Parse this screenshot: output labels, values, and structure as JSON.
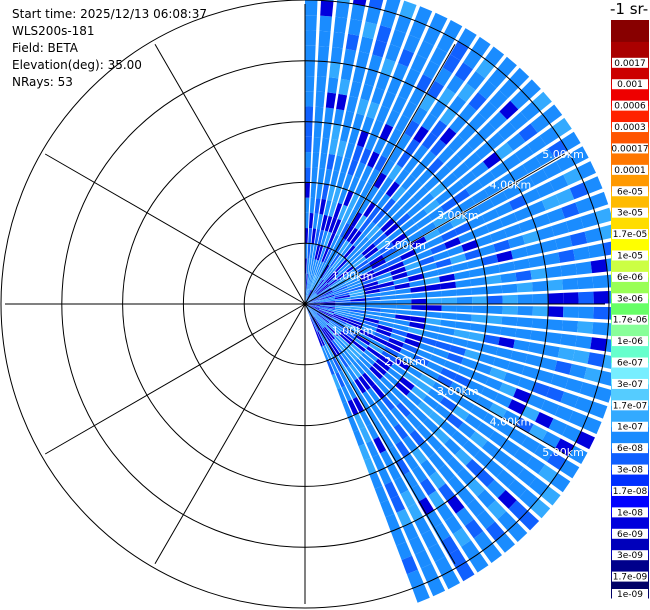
{
  "info": {
    "start_time": "Start time: 2025/12/13 06:08:37",
    "instrument": "WLS200s-181",
    "field": "Field: BETA",
    "elevation": "Elevation(deg): 35.00",
    "nrays": "NRays: 53"
  },
  "colorbar": {
    "title": "-1 sr-",
    "colors": [
      "#000066",
      "#00008b",
      "#0000bb",
      "#0000dd",
      "#0000ff",
      "#0030ff",
      "#1060ff",
      "#1a8cff",
      "#33aaff",
      "#55ccff",
      "#77eeff",
      "#66ffcc",
      "#88ff99",
      "#66ff66",
      "#99ff55",
      "#ccff44",
      "#ffff00",
      "#ffdd00",
      "#ffbb00",
      "#ff9900",
      "#ff7700",
      "#ff5500",
      "#ff2200",
      "#ee0000",
      "#cc0000",
      "#aa0000",
      "#880000"
    ],
    "labels": [
      "1e-09",
      "1.7e-09",
      "3e-09",
      "6e-09",
      "1e-08",
      "1.7e-08",
      "3e-08",
      "6e-08",
      "1e-07",
      "1.7e-07",
      "3e-07",
      "6e-07",
      "1e-06",
      "1.7e-06",
      "3e-06",
      "6e-06",
      "1e-05",
      "1.7e-05",
      "3e-05",
      "6e-05",
      "0.0001",
      "0.00017",
      "0.0003",
      "0.0006",
      "0.001",
      "0.0017"
    ]
  },
  "chart_data": {
    "type": "heatmap",
    "subtype": "radar-ppi",
    "field": "BETA",
    "instrument": "WLS200s-181",
    "elevation_deg": 35.0,
    "n_rays": 53,
    "azimuth_start_deg": 0,
    "azimuth_end_deg": 160,
    "max_range_km": 5.2,
    "range_rings_km": [
      1,
      2,
      3,
      4,
      5
    ],
    "range_ring_labels": [
      "1.00km",
      "2.00km",
      "3.00km",
      "4.00km",
      "5.00km"
    ],
    "typical_value": "6e-08",
    "value_range": [
      "1e-09",
      "1.7e-06"
    ],
    "colormap": "blue-to-red",
    "grid": true
  }
}
